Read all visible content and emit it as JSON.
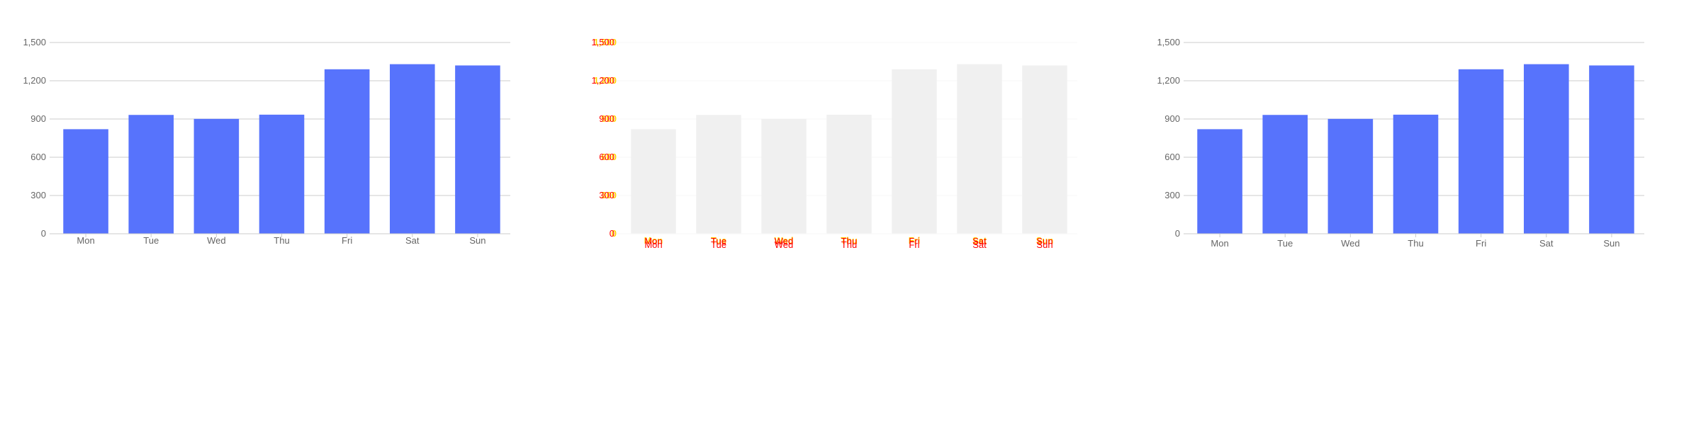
{
  "colors": {
    "bar": "#5773fc",
    "bar_faded": "#f0f0f0",
    "grid": "#cccccc",
    "grid_faded": "#f7f7f7",
    "axis_text": "#666666",
    "overlay_red": "#ff0000",
    "overlay_yellow": "#ffd400"
  },
  "chart_data": [
    {
      "type": "bar",
      "title": "",
      "xlabel": "",
      "ylabel": "",
      "categories": [
        "Mon",
        "Tue",
        "Wed",
        "Thu",
        "Fri",
        "Sat",
        "Sun"
      ],
      "values": [
        820,
        932,
        901,
        934,
        1290,
        1330,
        1320
      ],
      "ylim": [
        0,
        1500
      ],
      "yticks": [
        0,
        300,
        600,
        900,
        1200,
        1500
      ],
      "ytick_labels": [
        "0",
        "300",
        "600",
        "900",
        "1,200",
        "1,500"
      ],
      "grid": true,
      "legend": "none",
      "style": "normal"
    },
    {
      "type": "bar",
      "title": "",
      "xlabel": "",
      "ylabel": "",
      "categories": [
        "Mon",
        "Tue",
        "Wed",
        "Thu",
        "Fri",
        "Sat",
        "Sun"
      ],
      "values": [
        820,
        932,
        901,
        934,
        1290,
        1330,
        1320
      ],
      "ylim": [
        0,
        1500
      ],
      "yticks": [
        0,
        300,
        600,
        900,
        1200,
        1500
      ],
      "ytick_labels": [
        "0",
        "300",
        "600",
        "900",
        "1,200",
        "1,500"
      ],
      "grid": true,
      "legend": "none",
      "style": "faded-with-overlay-labels"
    },
    {
      "type": "bar",
      "title": "",
      "xlabel": "",
      "ylabel": "",
      "categories": [
        "Mon",
        "Tue",
        "Wed",
        "Thu",
        "Fri",
        "Sat",
        "Sun"
      ],
      "values": [
        820,
        932,
        901,
        934,
        1290,
        1330,
        1320
      ],
      "ylim": [
        0,
        1500
      ],
      "yticks": [
        0,
        300,
        600,
        900,
        1200,
        1500
      ],
      "ytick_labels": [
        "0",
        "300",
        "600",
        "900",
        "1,200",
        "1,500"
      ],
      "grid": true,
      "legend": "none",
      "style": "normal"
    }
  ]
}
